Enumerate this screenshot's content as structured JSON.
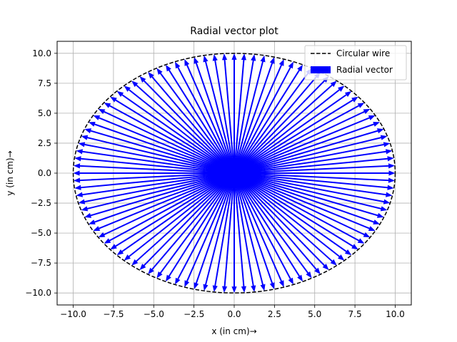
{
  "chart_data": {
    "type": "quiver",
    "title": "Radial vector plot",
    "xlabel": "x (in cm)→",
    "ylabel": "y (in cm)→",
    "xlim": [
      -11,
      11
    ],
    "ylim": [
      -11,
      11
    ],
    "xticks": [
      -10.0,
      -7.5,
      -5.0,
      -2.5,
      0.0,
      2.5,
      5.0,
      7.5,
      10.0
    ],
    "yticks": [
      -10.0,
      -7.5,
      -5.0,
      -2.5,
      0.0,
      2.5,
      5.0,
      7.5,
      10.0
    ],
    "xtick_labels": [
      "−10.0",
      "−7.5",
      "−5.0",
      "−2.5",
      "0.0",
      "2.5",
      "5.0",
      "7.5",
      "10.0"
    ],
    "ytick_labels": [
      "−10.0",
      "−7.5",
      "−5.0",
      "−2.5",
      "0.0",
      "2.5",
      "5.0",
      "7.5",
      "10.0"
    ],
    "grid": true,
    "legend_position": "upper right",
    "series": [
      {
        "name": "Circular wire",
        "kind": "dashed-circle",
        "radius": 10,
        "center": [
          0,
          0
        ],
        "color": "#000000"
      },
      {
        "name": "Radial vector",
        "kind": "arrows",
        "origin": [
          0,
          0
        ],
        "length": 10,
        "count": 100,
        "color": "#0000ff"
      }
    ]
  }
}
